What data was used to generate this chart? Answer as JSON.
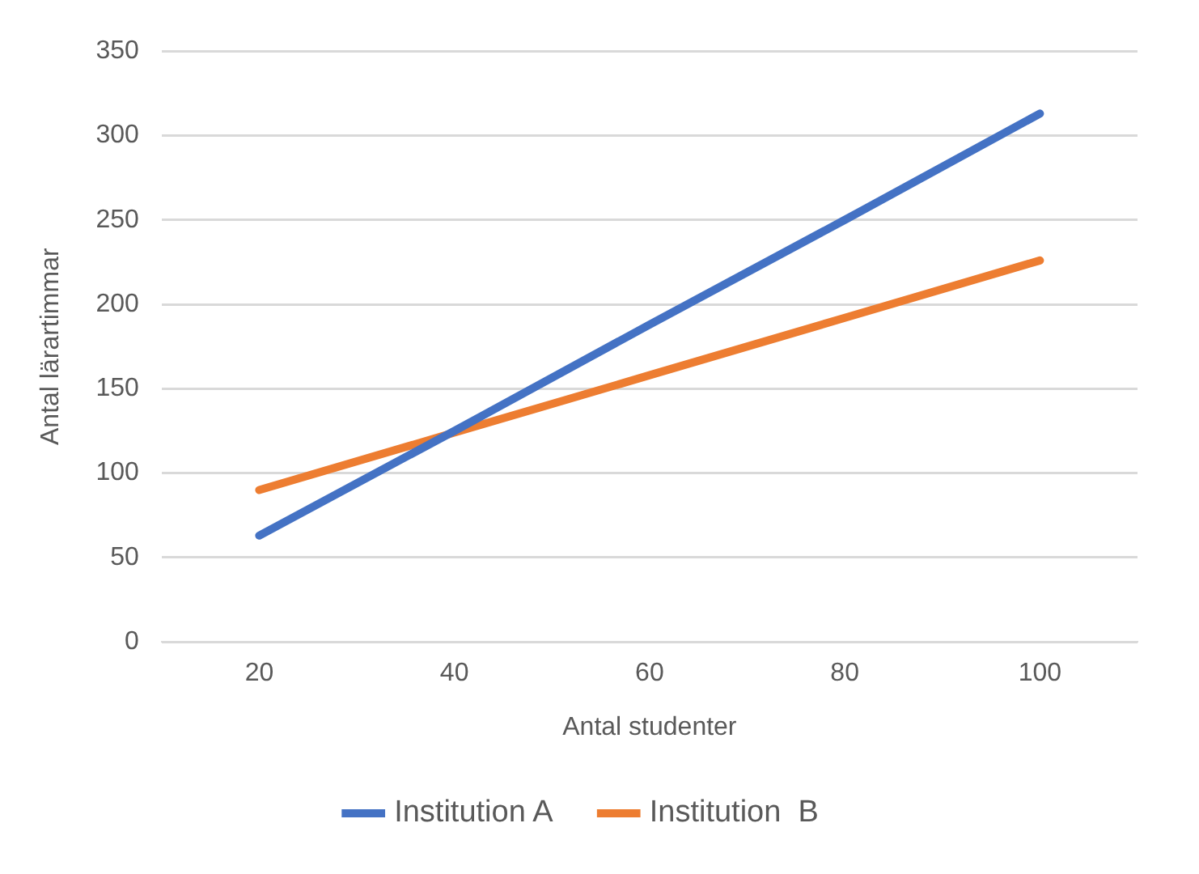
{
  "chart_data": {
    "type": "line",
    "xlabel": "Antal studenter",
    "ylabel": "Antal lärartimmar",
    "x": [
      20,
      40,
      60,
      80,
      100
    ],
    "series": [
      {
        "name": "Institution A",
        "color": "#4472c4",
        "values": [
          63,
          125,
          188,
          250,
          313
        ]
      },
      {
        "name": "Institution  B",
        "color": "#ed7d31",
        "values": [
          90,
          124,
          158,
          192,
          226
        ]
      }
    ],
    "xlim": [
      10,
      110
    ],
    "xticks": [
      20,
      40,
      60,
      80,
      100
    ],
    "ylim": [
      0,
      350
    ],
    "yticks": [
      0,
      50,
      100,
      150,
      200,
      250,
      300,
      350
    ],
    "grid": "y",
    "legend": "bottom",
    "marker": "none",
    "line_style": "solid"
  }
}
